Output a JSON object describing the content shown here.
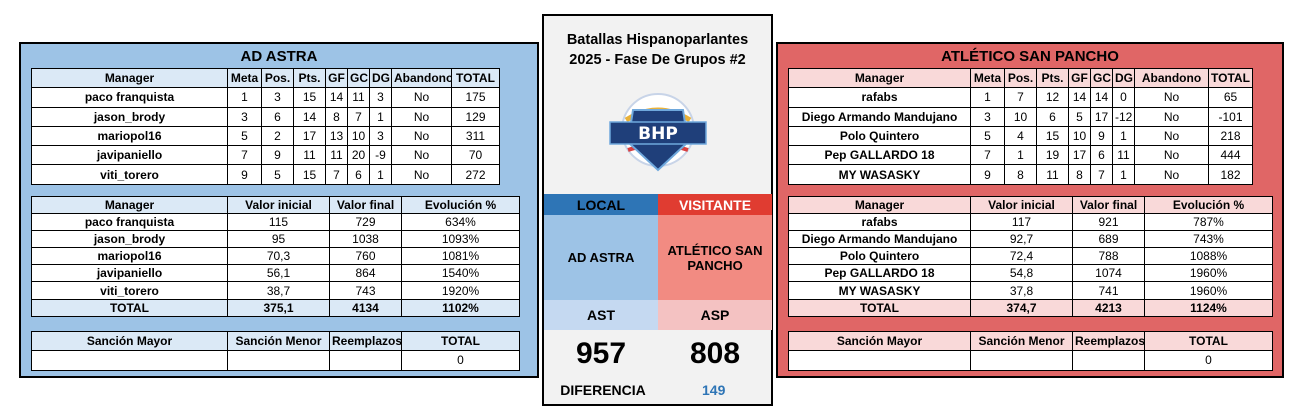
{
  "center": {
    "title_line1": "Batallas Hispanoparlantes",
    "title_line2": "2025 - Fase De Grupos #2",
    "logo_text": "BHP",
    "local_label": "LOCAL",
    "visitor_label": "VISITANTE",
    "local_name": "AD ASTRA",
    "visitor_name": "ATLÉTICO SAN PANCHO",
    "local_abbr": "AST",
    "visitor_abbr": "ASP",
    "local_score": "957",
    "visitor_score": "808",
    "diff_label": "DIFERENCIA",
    "diff_value": "149",
    "colors": {
      "local": "#2e75b6",
      "visitor": "#e03c31"
    }
  },
  "headers": {
    "stats": [
      "Manager",
      "Meta",
      "Pos.",
      "Pts.",
      "GF",
      "GC",
      "DG",
      "Abandono",
      "TOTAL"
    ],
    "values": [
      "Manager",
      "Valor inicial",
      "Valor final",
      "Evolución %"
    ],
    "penalties": [
      "Sanción Mayor",
      "Sanción Menor",
      "Reemplazos",
      "TOTAL"
    ]
  },
  "left": {
    "title": "AD ASTRA",
    "stats": [
      [
        "paco franquista",
        "1",
        "3",
        "15",
        "14",
        "11",
        "3",
        "No",
        "175"
      ],
      [
        "jason_brody",
        "3",
        "6",
        "14",
        "8",
        "7",
        "1",
        "No",
        "129"
      ],
      [
        "mariopol16",
        "5",
        "2",
        "17",
        "13",
        "10",
        "3",
        "No",
        "311"
      ],
      [
        "javipaniello",
        "7",
        "9",
        "11",
        "11",
        "20",
        "-9",
        "No",
        "70"
      ],
      [
        "viti_torero",
        "9",
        "5",
        "15",
        "7",
        "6",
        "1",
        "No",
        "272"
      ]
    ],
    "values": [
      [
        "paco franquista",
        "115",
        "729",
        "634%"
      ],
      [
        "jason_brody",
        "95",
        "1038",
        "1093%"
      ],
      [
        "mariopol16",
        "70,3",
        "760",
        "1081%"
      ],
      [
        "javipaniello",
        "56,1",
        "864",
        "1540%"
      ],
      [
        "viti_torero",
        "38,7",
        "743",
        "1920%"
      ]
    ],
    "values_total": [
      "TOTAL",
      "375,1",
      "4134",
      "1102%"
    ],
    "penalties": [
      "",
      "",
      "",
      "0"
    ]
  },
  "right": {
    "title": "ATLÉTICO SAN PANCHO",
    "stats": [
      [
        "rafabs",
        "1",
        "7",
        "12",
        "14",
        "14",
        "0",
        "No",
        "65"
      ],
      [
        "Diego Armando Mandujano",
        "3",
        "10",
        "6",
        "5",
        "17",
        "-12",
        "No",
        "-101"
      ],
      [
        "Polo Quintero",
        "5",
        "4",
        "15",
        "10",
        "9",
        "1",
        "No",
        "218"
      ],
      [
        "Pep GALLARDO 18",
        "7",
        "1",
        "19",
        "17",
        "6",
        "11",
        "No",
        "444"
      ],
      [
        "MY WASASKY",
        "9",
        "8",
        "11",
        "8",
        "7",
        "1",
        "No",
        "182"
      ]
    ],
    "values": [
      [
        "rafabs",
        "117",
        "921",
        "787%"
      ],
      [
        "Diego Armando Mandujano",
        "92,7",
        "689",
        "743%"
      ],
      [
        "Polo Quintero",
        "72,4",
        "788",
        "1088%"
      ],
      [
        "Pep GALLARDO 18",
        "54,8",
        "1074",
        "1960%"
      ],
      [
        "MY WASASKY",
        "37,8",
        "741",
        "1960%"
      ]
    ],
    "values_total": [
      "TOTAL",
      "374,7",
      "4213",
      "1124%"
    ],
    "penalties": [
      "",
      "",
      "",
      "0"
    ]
  }
}
